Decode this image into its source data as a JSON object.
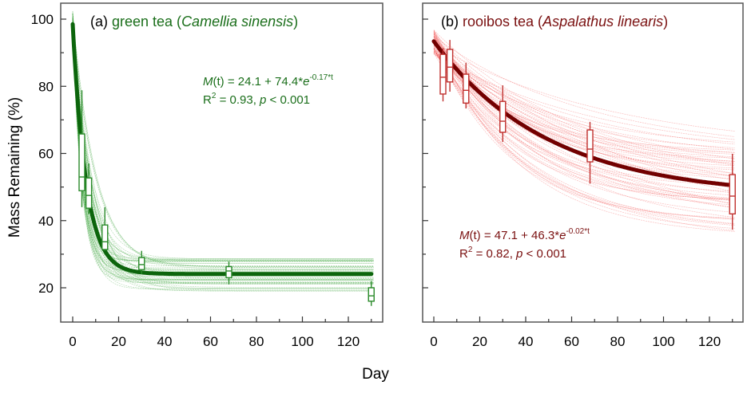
{
  "figure": {
    "ylabel": "Mass Remaining (%)",
    "xlabel": "Day"
  },
  "chart_data": [
    {
      "type": "line",
      "panel": "a",
      "title_prefix": "(a) ",
      "title_main": "green tea (",
      "title_species": "Camellia sinensis",
      "title_suffix": ")",
      "xlabel": "Day",
      "ylabel": "Mass Remaining (%)",
      "xlim": [
        -5,
        135
      ],
      "ylim": [
        10,
        105
      ],
      "xticks": [
        0,
        20,
        40,
        60,
        80,
        100,
        120
      ],
      "xtick_labels": [
        "0",
        "20",
        "40",
        "60",
        "80",
        "100",
        "120"
      ],
      "yticks": [
        20,
        40,
        60,
        80,
        100
      ],
      "ytick_labels": [
        "20",
        "40",
        "60",
        "80",
        "100"
      ],
      "fit": {
        "a": 24.1,
        "b": 74.4,
        "k": 0.17
      },
      "equation": {
        "lhs": "M",
        "arg": "(t)",
        "body": " = 24.1 + 74.4*",
        "e": "e",
        "exp": "-0.17*t",
        "r2_label": "R",
        "r2_sup": "2",
        "r2_text": " = 0.93, ",
        "p": "p",
        "p_text": " < 0.001"
      },
      "ensemble_curves": 60,
      "boxes": [
        {
          "day": 4,
          "whisker_low": 44,
          "q1": 48.9,
          "median": 53,
          "q3": 65.8,
          "whisker_high": 78.8
        },
        {
          "day": 7,
          "whisker_low": 42,
          "q1": 43.7,
          "median": 47.5,
          "q3": 52.7,
          "whisker_high": 57
        },
        {
          "day": 14,
          "whisker_low": 31,
          "q1": 31.4,
          "median": 33.7,
          "q3": 38.7,
          "whisker_high": 44
        },
        {
          "day": 30,
          "whisker_low": 24,
          "q1": 25.4,
          "median": 26.9,
          "q3": 29,
          "whisker_high": 31
        },
        {
          "day": 68,
          "whisker_low": 21,
          "q1": 23,
          "median": 25,
          "q3": 26.3,
          "whisker_high": 27.8
        },
        {
          "day": 130,
          "whisker_low": 14.6,
          "q1": 16,
          "median": 17.6,
          "q3": 20,
          "whisker_high": 22
        }
      ],
      "colors": {
        "fit": "#0c650c",
        "ensemble": "#3aa33a",
        "box": "#2a8a2a",
        "text": "#1a6e1a"
      }
    },
    {
      "type": "line",
      "panel": "b",
      "title_prefix": "(b) ",
      "title_main": "rooibos tea (",
      "title_species": "Aspalathus linearis",
      "title_suffix": ")",
      "xlabel": "Day",
      "xlim": [
        -5,
        135
      ],
      "ylim": [
        10,
        105
      ],
      "xticks": [
        0,
        20,
        40,
        60,
        80,
        100,
        120
      ],
      "xtick_labels": [
        "0",
        "20",
        "40",
        "60",
        "80",
        "100",
        "120"
      ],
      "yticks": [
        20,
        40,
        60,
        80,
        100
      ],
      "fit": {
        "a": 47.1,
        "b": 46.3,
        "k": 0.02
      },
      "equation": {
        "lhs": "M",
        "arg": "(t)",
        "body": " = 47.1 + 46.3*",
        "e": "e",
        "exp": "-0.02*t",
        "r2_label": "R",
        "r2_sup": "2",
        "r2_text": " = 0.82, ",
        "p": "p",
        "p_text": " < 0.001"
      },
      "ensemble_curves": 60,
      "boxes": [
        {
          "day": 4,
          "whisker_low": 75.5,
          "q1": 77.7,
          "median": 82.7,
          "q3": 89.5,
          "whisker_high": 91.4
        },
        {
          "day": 7,
          "whisker_low": 78.4,
          "q1": 81.3,
          "median": 85.7,
          "q3": 91,
          "whisker_high": 93.8
        },
        {
          "day": 14,
          "whisker_low": 73.4,
          "q1": 75,
          "median": 78.8,
          "q3": 83.6,
          "whisker_high": 87
        },
        {
          "day": 30,
          "whisker_low": 63.4,
          "q1": 66.3,
          "median": 69.6,
          "q3": 75.5,
          "whisker_high": 80.3
        },
        {
          "day": 68,
          "whisker_low": 51,
          "q1": 57.5,
          "median": 61.3,
          "q3": 67,
          "whisker_high": 69.4
        },
        {
          "day": 130,
          "whisker_low": 37.3,
          "q1": 42,
          "median": 47.3,
          "q3": 53.7,
          "whisker_high": 59.9
        }
      ],
      "colors": {
        "fit": "#720000",
        "ensemble": "#f04848",
        "box": "#c0302e",
        "text": "#7a1010"
      }
    }
  ]
}
